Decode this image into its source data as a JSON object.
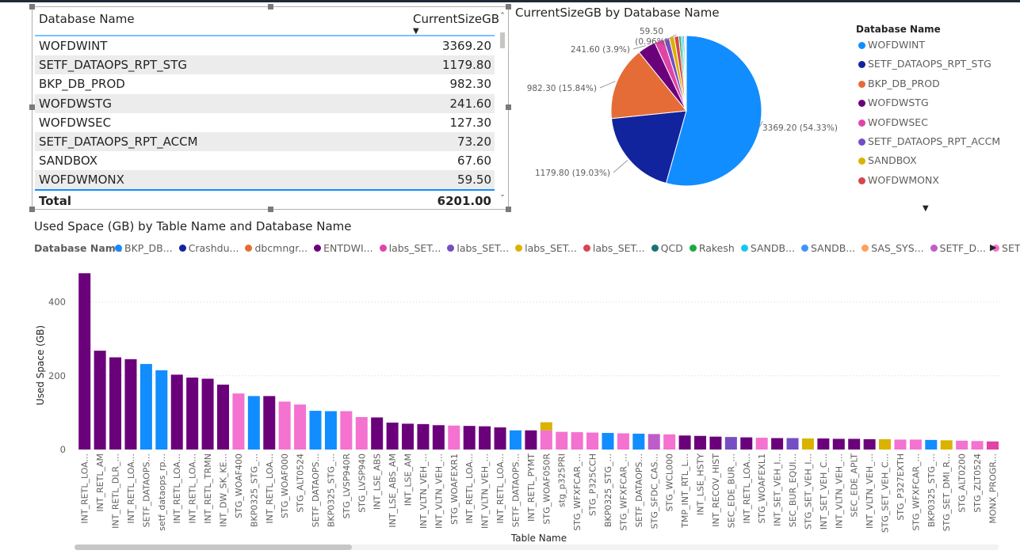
{
  "table": {
    "columns": [
      "Database Name",
      "CurrentSizeGB"
    ],
    "rows": [
      [
        "WOFDWINT",
        "3369.20"
      ],
      [
        "SETF_DATAOPS_RPT_STG",
        "1179.80"
      ],
      [
        "BKP_DB_PROD",
        "982.30"
      ],
      [
        "WOFDWSTG",
        "241.60"
      ],
      [
        "WOFDWSEC",
        "127.30"
      ],
      [
        "SETF_DATAOPS_RPT_ACCM",
        "73.20"
      ],
      [
        "SANDBOX",
        "67.60"
      ],
      [
        "WOFDWMONX",
        "59.50"
      ]
    ],
    "total_label": "Total",
    "total_value": "6201.00"
  },
  "colors": {
    "accent": "#118dff",
    "WOFDWINT": "#118dff",
    "SETF_DATAOPS_RPT_STG": "#12239e",
    "BKP_DB_PROD": "#e66c37",
    "WOFDWSTG": "#6b007b",
    "WOFDWSEC": "#e044a7",
    "SETF_DATAOPS_RPT_ACCM": "#744ec2",
    "SANDBOX": "#d9b300",
    "WOFDWMONX": "#d64550"
  },
  "chart_data": [
    {
      "type": "pie",
      "title": "CurrentSizeGB by Database Name",
      "legend_title": "Database Name",
      "legend_placement": "right",
      "slices": [
        {
          "name": "WOFDWINT",
          "value": 3369.2,
          "label": "3369.20 (54.33%)"
        },
        {
          "name": "SETF_DATAOPS_RPT_STG",
          "value": 1179.8,
          "label": "1179.80 (19.03%)"
        },
        {
          "name": "BKP_DB_PROD",
          "value": 982.3,
          "label": "982.30 (15.84%)"
        },
        {
          "name": "WOFDWSTG",
          "value": 241.6,
          "label": "241.60 (3.9%)"
        },
        {
          "name": "WOFDWSEC",
          "value": 127.3,
          "label": ""
        },
        {
          "name": "SETF_DATAOPS_RPT_ACCM",
          "value": 73.2,
          "label": ""
        },
        {
          "name": "SANDBOX",
          "value": 67.6,
          "label": ""
        },
        {
          "name": "WOFDWMONX",
          "value": 59.5,
          "label": "59.50 (0.96%)"
        },
        {
          "name": "",
          "value": 30,
          "label": ""
        },
        {
          "name": "",
          "value": 25,
          "label": ""
        },
        {
          "name": "",
          "value": 20,
          "label": ""
        },
        {
          "name": "",
          "value": 15,
          "label": ""
        },
        {
          "name": "",
          "value": 10.5,
          "label": ""
        }
      ],
      "legend_items": [
        "WOFDWINT",
        "SETF_DATAOPS_RPT_STG",
        "BKP_DB_PROD",
        "WOFDWSTG",
        "WOFDWSEC",
        "SETF_DATAOPS_RPT_ACCM",
        "SANDBOX",
        "WOFDWMONX"
      ]
    },
    {
      "type": "bar",
      "title": "Used Space (GB) by Table Name and Database Name",
      "xlabel": "Table Name",
      "ylabel": "Used Space (GB)",
      "ylim": [
        0,
        500
      ],
      "yticks": [
        0,
        200,
        400
      ],
      "grid": true,
      "legend_title": "Database Name",
      "legend_items": [
        {
          "label": "BKP_DB...",
          "color": "#118dff"
        },
        {
          "label": "Crashdu...",
          "color": "#12239e"
        },
        {
          "label": "dbcmngr...",
          "color": "#e66c37"
        },
        {
          "label": "ENTDWI...",
          "color": "#6b007b"
        },
        {
          "label": "labs_SET...",
          "color": "#e044a7"
        },
        {
          "label": "labs_SET...",
          "color": "#744ec2"
        },
        {
          "label": "labs_SET...",
          "color": "#d9b300"
        },
        {
          "label": "labs_SET...",
          "color": "#d64550"
        },
        {
          "label": "QCD",
          "color": "#197278"
        },
        {
          "label": "Rakesh",
          "color": "#1aab40"
        },
        {
          "label": "SANDB...",
          "color": "#15c6f4"
        },
        {
          "label": "SANDB...",
          "color": "#4092ff"
        },
        {
          "label": "SAS_SYS...",
          "color": "#ffa058"
        },
        {
          "label": "SETF_D...",
          "color": "#be5dc9"
        },
        {
          "label": "SETF_D...",
          "color": "#f472d0"
        }
      ],
      "categories": [
        "INT_RETL_LOA...",
        "INT_RETL_AM",
        "INT_RETL_DLR_...",
        "INT_RETL_LOA...",
        "SETF_DATAOPS...",
        "setf_dataops_rp...",
        "INT_RETL_LOA...",
        "INT_RETL_LOA...",
        "INT_RETL_TRMN",
        "INT_DW_SK_KE...",
        "STG_WOAF400",
        "BKP0325_STG_...",
        "INT_RETL_LOA...",
        "STG_WOAF000",
        "STG_ALT0524",
        "SETF_DATAOPS...",
        "BKP0325_STG_...",
        "STG_LVSP940R",
        "STG_LVSP940",
        "INT_LSE_ABS",
        "INT_LSE_ABS_AM",
        "INT_LSE_AM",
        "INT_VLTN_VEH_...",
        "INT_VLTN_VEH_...",
        "STG_WOAFEXR1",
        "INT_RETL_LOA...",
        "INT_VLTN_VEH_...",
        "INT_RETL_LOA...",
        "SETF_DATAOPS...",
        "INT_RETL_PYMT",
        "STG_WOAF050R",
        "stg_p325PRI",
        "STG_WFXFCAR_...",
        "STG_P325CCH",
        "BKP0325_STG_...",
        "STG_WFXFCAR_...",
        "SETF_DATAOPS...",
        "STG_SFDC_CAS...",
        "STG_WCL000",
        "TMP_INT_RTL_L...",
        "INT_LSE_HSTY",
        "INT_RECOV_HIST",
        "SEC_EDE_BUR_...",
        "INT_RETL_LOA...",
        "STG_WOAFEXL1",
        "INT_SET_VEH_I...",
        "SEC_BUR_EQUI...",
        "STG_SET_VEH_I...",
        "INT_SET_VEH_C...",
        "INT_VLTN_VEH_...",
        "SEC_EDE_APLT",
        "INT_VLTN_VEH_...",
        "STG_SET_VEH_C...",
        "STG_P327EXTH",
        "STG_WFXFCAR_...",
        "BKP0325_STG_...",
        "STG_SET_DMI_R...",
        "STG_ALT0200",
        "STG_ZLT0524",
        "MONX_PROGR..."
      ],
      "values": [
        478,
        268,
        250,
        245,
        232,
        215,
        203,
        195,
        192,
        176,
        152,
        145,
        145,
        130,
        122,
        105,
        104,
        104,
        88,
        87,
        73,
        70,
        69,
        66,
        65,
        64,
        63,
        60,
        52,
        52,
        52,
        48,
        47,
        46,
        45,
        44,
        43,
        42,
        41,
        38,
        37,
        35,
        34,
        33,
        32,
        31,
        31,
        30,
        30,
        29,
        29,
        28,
        28,
        27,
        27,
        26,
        25,
        24,
        23,
        22
      ],
      "colors": [
        "#6b007b",
        "#6b007b",
        "#6b007b",
        "#6b007b",
        "#118dff",
        "#118dff",
        "#6b007b",
        "#6b007b",
        "#6b007b",
        "#6b007b",
        "#f472d0",
        "#118dff",
        "#6b007b",
        "#f472d0",
        "#f472d0",
        "#118dff",
        "#118dff",
        "#f472d0",
        "#f472d0",
        "#6b007b",
        "#6b007b",
        "#6b007b",
        "#6b007b",
        "#6b007b",
        "#f472d0",
        "#6b007b",
        "#6b007b",
        "#6b007b",
        "#118dff",
        "#6b007b",
        "#f472d0",
        "#f472d0",
        "#f472d0",
        "#f472d0",
        "#118dff",
        "#f472d0",
        "#118dff",
        "#be5dc9",
        "#f472d0",
        "#6b007b",
        "#6b007b",
        "#6b007b",
        "#744ec2",
        "#6b007b",
        "#f472d0",
        "#6b007b",
        "#744ec2",
        "#d9b300",
        "#6b007b",
        "#6b007b",
        "#6b007b",
        "#6b007b",
        "#d9b300",
        "#f472d0",
        "#f472d0",
        "#118dff",
        "#d9b300",
        "#f472d0",
        "#f472d0",
        "#e044a7"
      ],
      "stacked_top": [
        {
          "index": 30,
          "value": 22,
          "color": "#d9b300"
        }
      ]
    }
  ]
}
